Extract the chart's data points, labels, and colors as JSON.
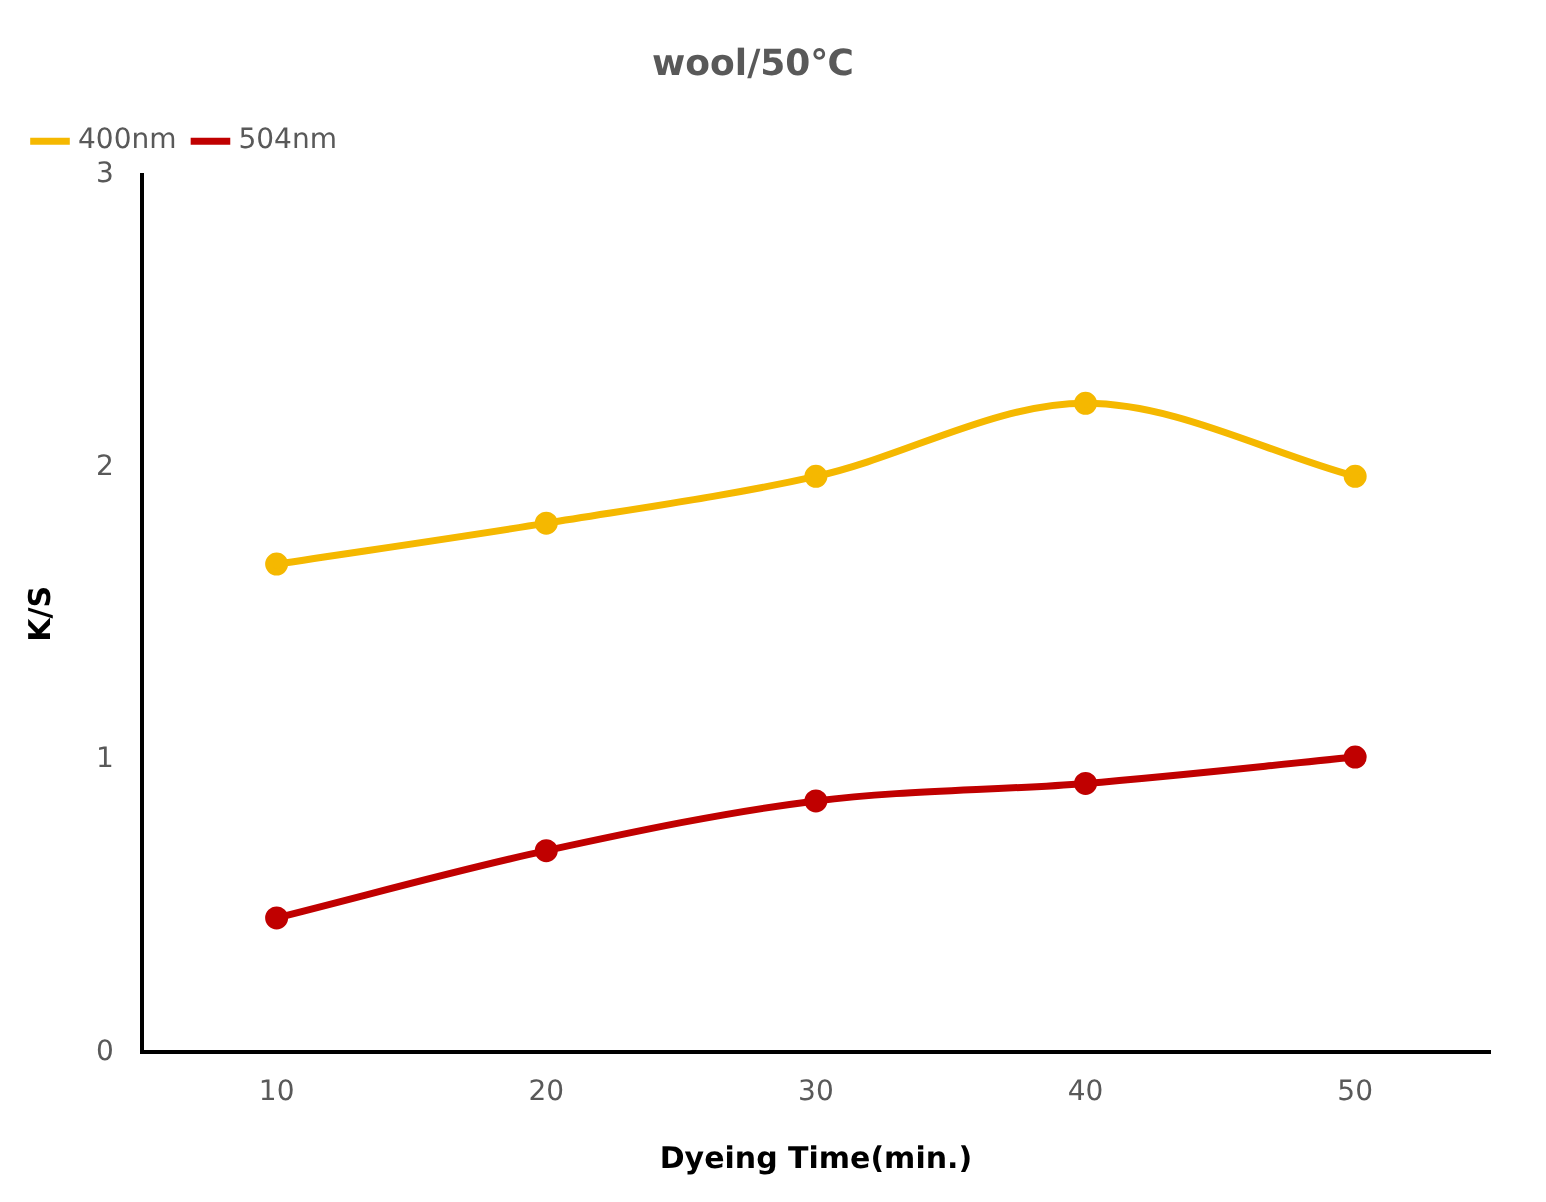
{
  "chart_data": {
    "type": "line",
    "title": "wool/50℃",
    "xlabel": "Dyeing Time(min.)",
    "ylabel": "K/S",
    "categories": [
      "10",
      "20",
      "30",
      "40",
      "50"
    ],
    "series": [
      {
        "name": "400nm",
        "color": "#f5b800",
        "values": [
          1.67,
          1.81,
          1.97,
          2.22,
          1.97
        ]
      },
      {
        "name": "504nm",
        "color": "#c00000",
        "values": [
          0.46,
          0.69,
          0.86,
          0.92,
          1.01
        ]
      }
    ],
    "ylim": [
      0,
      3
    ],
    "yticks": [
      0,
      1,
      2,
      3
    ],
    "grid": false,
    "legend": "top left",
    "marker": "circle",
    "line_style": "solid"
  }
}
